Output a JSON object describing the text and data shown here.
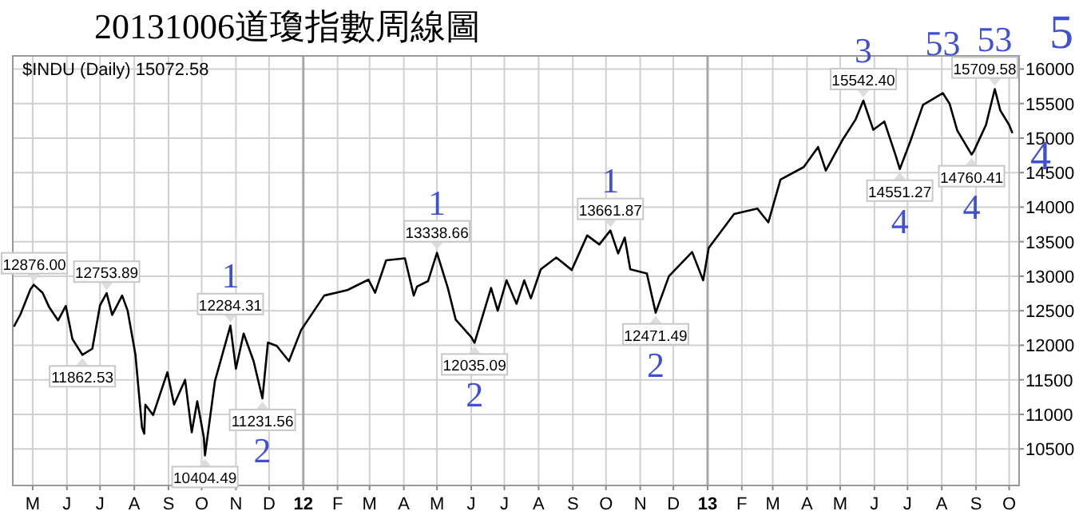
{
  "chart_data": {
    "type": "line",
    "title": "20131006道瓊指數周線圖",
    "subtitle": "$INDU (Daily) 15072.58",
    "x": [
      "2011-04-14",
      "2011-04-20",
      "2011-04-29",
      "2011-05-02",
      "2011-05-10",
      "2011-05-16",
      "2011-05-24",
      "2011-05-31",
      "2011-06-06",
      "2011-06-15",
      "2011-06-24",
      "2011-07-01",
      "2011-07-07",
      "2011-07-12",
      "2011-07-21",
      "2011-07-26",
      "2011-08-02",
      "2011-08-08",
      "2011-08-10",
      "2011-08-11",
      "2011-08-18",
      "2011-08-31",
      "2011-09-06",
      "2011-09-16",
      "2011-09-22",
      "2011-09-27",
      "2011-10-03",
      "2011-10-04",
      "2011-10-13",
      "2011-10-27",
      "2011-11-01",
      "2011-11-08",
      "2011-11-17",
      "2011-11-25",
      "2011-11-30",
      "2011-12-08",
      "2011-12-19",
      "2011-12-30",
      "2012-01-20",
      "2012-02-10",
      "2012-02-29",
      "2012-03-06",
      "2012-03-16",
      "2012-04-02",
      "2012-04-10",
      "2012-04-13",
      "2012-04-23",
      "2012-05-01",
      "2012-05-11",
      "2012-05-18",
      "2012-06-01",
      "2012-06-04",
      "2012-06-19",
      "2012-06-25",
      "2012-07-03",
      "2012-07-12",
      "2012-07-19",
      "2012-07-25",
      "2012-08-03",
      "2012-08-17",
      "2012-08-31",
      "2012-09-14",
      "2012-09-25",
      "2012-10-05",
      "2012-10-12",
      "2012-10-18",
      "2012-10-23",
      "2012-11-07",
      "2012-11-15",
      "2012-11-27",
      "2012-12-18",
      "2012-12-28",
      "2013-01-02",
      "2013-01-25",
      "2013-02-15",
      "2013-02-25",
      "2013-03-08",
      "2013-03-29",
      "2013-04-11",
      "2013-04-18",
      "2013-05-03",
      "2013-05-15",
      "2013-05-22",
      "2013-05-31",
      "2013-06-10",
      "2013-06-20",
      "2013-06-24",
      "2013-07-03",
      "2013-07-15",
      "2013-08-02",
      "2013-08-08",
      "2013-08-15",
      "2013-08-28",
      "2013-08-30",
      "2013-09-10",
      "2013-09-18",
      "2013-09-23",
      "2013-10-01",
      "2013-10-04"
    ],
    "series": [
      {
        "color": "#000000",
        "values": [
          12270,
          12450,
          12810,
          12876,
          12760,
          12550,
          12360,
          12570,
          12090,
          11862.53,
          11950,
          12580,
          12753.89,
          12440,
          12720,
          12500,
          11870,
          10810,
          10720,
          11140,
          10990,
          11610,
          11140,
          11500,
          10740,
          11190,
          10660,
          10404.49,
          11480,
          12284.31,
          11660,
          12170,
          11770,
          11231.56,
          12040,
          11990,
          11770,
          12220,
          12720,
          12800,
          12950,
          12760,
          13230,
          13260,
          12720,
          12850,
          12930,
          13338.66,
          12820,
          12370,
          12120,
          12035.09,
          12830,
          12500,
          12940,
          12600,
          12940,
          12680,
          13100,
          13270,
          13090,
          13590,
          13460,
          13661.87,
          13330,
          13560,
          13100,
          13040,
          12471.49,
          13000,
          13350,
          12940,
          13410,
          13900,
          13980,
          13780,
          14400,
          14580,
          14870,
          14530,
          14970,
          15270,
          15542.4,
          15120,
          15240,
          14760,
          14551.27,
          14930,
          15480,
          15650,
          15500,
          15110,
          14760.41,
          14810,
          15190,
          15709.58,
          15400,
          15190,
          15072.58
        ]
      }
    ],
    "xlim": [
      "2011-04-13",
      "2013-10-10"
    ],
    "ylim": [
      9970,
      16190
    ],
    "yticks": [
      10500,
      11000,
      11500,
      12000,
      12500,
      13000,
      13500,
      14000,
      14500,
      15000,
      15500,
      16000
    ],
    "xticks": [
      {
        "value": "2011-05-01",
        "label": "M"
      },
      {
        "value": "2011-06-01",
        "label": "J"
      },
      {
        "value": "2011-07-01",
        "label": "J"
      },
      {
        "value": "2011-08-01",
        "label": "A"
      },
      {
        "value": "2011-09-01",
        "label": "S"
      },
      {
        "value": "2011-10-01",
        "label": "O"
      },
      {
        "value": "2011-11-01",
        "label": "N"
      },
      {
        "value": "2011-12-01",
        "label": "D"
      },
      {
        "value": "2012-01-01",
        "label": "12"
      },
      {
        "value": "2012-02-01",
        "label": "F"
      },
      {
        "value": "2012-03-01",
        "label": "M"
      },
      {
        "value": "2012-04-01",
        "label": "A"
      },
      {
        "value": "2012-05-01",
        "label": "M"
      },
      {
        "value": "2012-06-01",
        "label": "J"
      },
      {
        "value": "2012-07-01",
        "label": "J"
      },
      {
        "value": "2012-08-01",
        "label": "A"
      },
      {
        "value": "2012-09-01",
        "label": "S"
      },
      {
        "value": "2012-10-01",
        "label": "O"
      },
      {
        "value": "2012-11-01",
        "label": "N"
      },
      {
        "value": "2012-12-01",
        "label": "D"
      },
      {
        "value": "2013-01-01",
        "label": "13"
      },
      {
        "value": "2013-02-01",
        "label": "F"
      },
      {
        "value": "2013-03-01",
        "label": "M"
      },
      {
        "value": "2013-04-01",
        "label": "A"
      },
      {
        "value": "2013-05-01",
        "label": "M"
      },
      {
        "value": "2013-06-01",
        "label": "J"
      },
      {
        "value": "2013-07-01",
        "label": "J"
      },
      {
        "value": "2013-08-01",
        "label": "A"
      },
      {
        "value": "2013-09-01",
        "label": "S"
      },
      {
        "value": "2013-10-01",
        "label": "O"
      }
    ],
    "grid": true,
    "annotations": [
      {
        "text": "12876.00",
        "x": "2011-05-02",
        "y": 12876
      },
      {
        "text": "11862.53",
        "x": "2011-06-15",
        "y": 11862.53
      },
      {
        "text": "12753.89",
        "x": "2011-07-07",
        "y": 12753.89
      },
      {
        "text": "10404.49",
        "x": "2011-10-04",
        "y": 10404.49
      },
      {
        "text": "12284.31",
        "x": "2011-10-27",
        "y": 12284.31
      },
      {
        "text": "11231.56",
        "x": "2011-11-25",
        "y": 11231.56
      },
      {
        "text": "13338.66",
        "x": "2012-05-01",
        "y": 13338.66
      },
      {
        "text": "12035.09",
        "x": "2012-06-04",
        "y": 12035.09
      },
      {
        "text": "13661.87",
        "x": "2012-10-05",
        "y": 13661.87
      },
      {
        "text": "12471.49",
        "x": "2012-11-15",
        "y": 12471.49
      },
      {
        "text": "15542.40",
        "x": "2013-05-22",
        "y": 15542.4
      },
      {
        "text": "14551.27",
        "x": "2013-06-24",
        "y": 14551.27
      },
      {
        "text": "14760.41",
        "x": "2013-08-28",
        "y": 14760.41
      },
      {
        "text": "15709.58",
        "x": "2013-09-18",
        "y": 15709.58
      },
      {
        "text": "1",
        "x": "2011-10-27",
        "y": 12284.31
      },
      {
        "text": "2",
        "x": "2011-11-25",
        "y": 11231.56
      },
      {
        "text": "1",
        "x": "2012-05-01",
        "y": 13338.66
      },
      {
        "text": "2",
        "x": "2012-06-04",
        "y": 12035.09
      },
      {
        "text": "1",
        "x": "2012-10-05",
        "y": 13661.87
      },
      {
        "text": "2",
        "x": "2012-11-15",
        "y": 12471.49
      },
      {
        "text": "3",
        "x": "2013-05-22",
        "y": 15542.4
      },
      {
        "text": "4",
        "x": "2013-06-24",
        "y": 14551.27
      },
      {
        "text": "53",
        "x": "2013-08-02",
        "y": 15650
      },
      {
        "text": "4",
        "x": "2013-08-28",
        "y": 14760.41
      },
      {
        "text": "53",
        "x": "2013-09-18",
        "y": 15709.58
      },
      "5",
      "4"
    ]
  }
}
